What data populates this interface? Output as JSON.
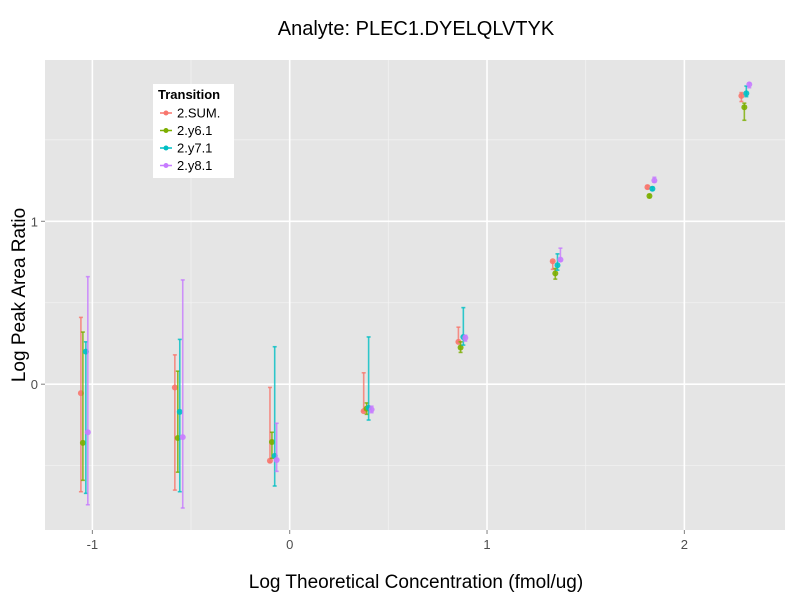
{
  "chart_data": {
    "type": "scatter",
    "title": "Analyte: PLEC1.DYELQLVTYK",
    "xlabel": "Log Theoretical Concentration (fmol/ug)",
    "ylabel": "Log Peak Area Ratio",
    "xlim": [
      -1.24,
      2.51
    ],
    "ylim": [
      -0.895,
      1.99
    ],
    "x_ticks": [
      -1,
      0,
      1,
      2
    ],
    "x_tick_labels": [
      "-1",
      "0",
      "1",
      "2"
    ],
    "y_ticks": [
      0,
      1
    ],
    "y_tick_labels": [
      "0",
      "1"
    ],
    "x_minor": [
      -0.5,
      0.5,
      1.5
    ],
    "y_minor": [
      -0.5,
      0.5,
      1.5
    ],
    "grid": true,
    "legend": {
      "title": "Transition",
      "placement": "top-left"
    },
    "series": [
      {
        "name": "2.SUM.",
        "color": "#F8766D",
        "x": [
          -1.058,
          -0.582,
          -0.1,
          0.375,
          0.855,
          1.333,
          1.813,
          2.289
        ],
        "y": [
          -0.055,
          -0.02,
          -0.47,
          -0.165,
          0.26,
          0.755,
          1.21,
          1.77
        ],
        "ymin": [
          -0.66,
          -0.65,
          -0.48,
          -0.165,
          0.26,
          0.705,
          1.2,
          1.735
        ],
        "ymax": [
          0.41,
          0.18,
          -0.02,
          0.07,
          0.35,
          0.755,
          1.22,
          1.79
        ]
      },
      {
        "name": "2.y6.1",
        "color": "#7CAE00",
        "x": [
          -1.048,
          -0.567,
          -0.09,
          0.39,
          0.866,
          1.346,
          1.823,
          2.304
        ],
        "y": [
          -0.36,
          -0.33,
          -0.355,
          -0.15,
          0.225,
          0.68,
          1.155,
          1.7
        ],
        "ymin": [
          -0.59,
          -0.54,
          -0.455,
          -0.185,
          0.195,
          0.645,
          1.145,
          1.62
        ],
        "ymax": [
          0.32,
          0.08,
          -0.295,
          -0.115,
          0.26,
          0.71,
          1.165,
          1.725
        ]
      },
      {
        "name": "2.y7.1",
        "color": "#00BFC4",
        "x": [
          -1.033,
          -0.557,
          -0.076,
          0.4,
          0.88,
          1.357,
          1.838,
          2.314
        ],
        "y": [
          0.2,
          -0.17,
          -0.44,
          -0.145,
          0.29,
          0.73,
          1.2,
          1.785
        ],
        "ymin": [
          -0.67,
          -0.66,
          -0.625,
          -0.22,
          0.24,
          0.7,
          1.19,
          1.765
        ],
        "ymax": [
          0.26,
          0.275,
          0.23,
          0.29,
          0.47,
          0.8,
          1.21,
          1.83
        ]
      },
      {
        "name": "2.y8.1",
        "color": "#C77CFF",
        "x": [
          -1.023,
          -0.542,
          -0.066,
          0.415,
          0.89,
          1.372,
          1.848,
          2.329
        ],
        "y": [
          -0.295,
          -0.325,
          -0.465,
          -0.155,
          0.285,
          0.765,
          1.25,
          1.84
        ],
        "ymin": [
          -0.74,
          -0.76,
          -0.535,
          -0.175,
          0.265,
          0.755,
          1.24,
          1.82
        ],
        "ymax": [
          0.66,
          0.64,
          -0.24,
          -0.135,
          0.3,
          0.835,
          1.27,
          1.85
        ]
      }
    ]
  }
}
